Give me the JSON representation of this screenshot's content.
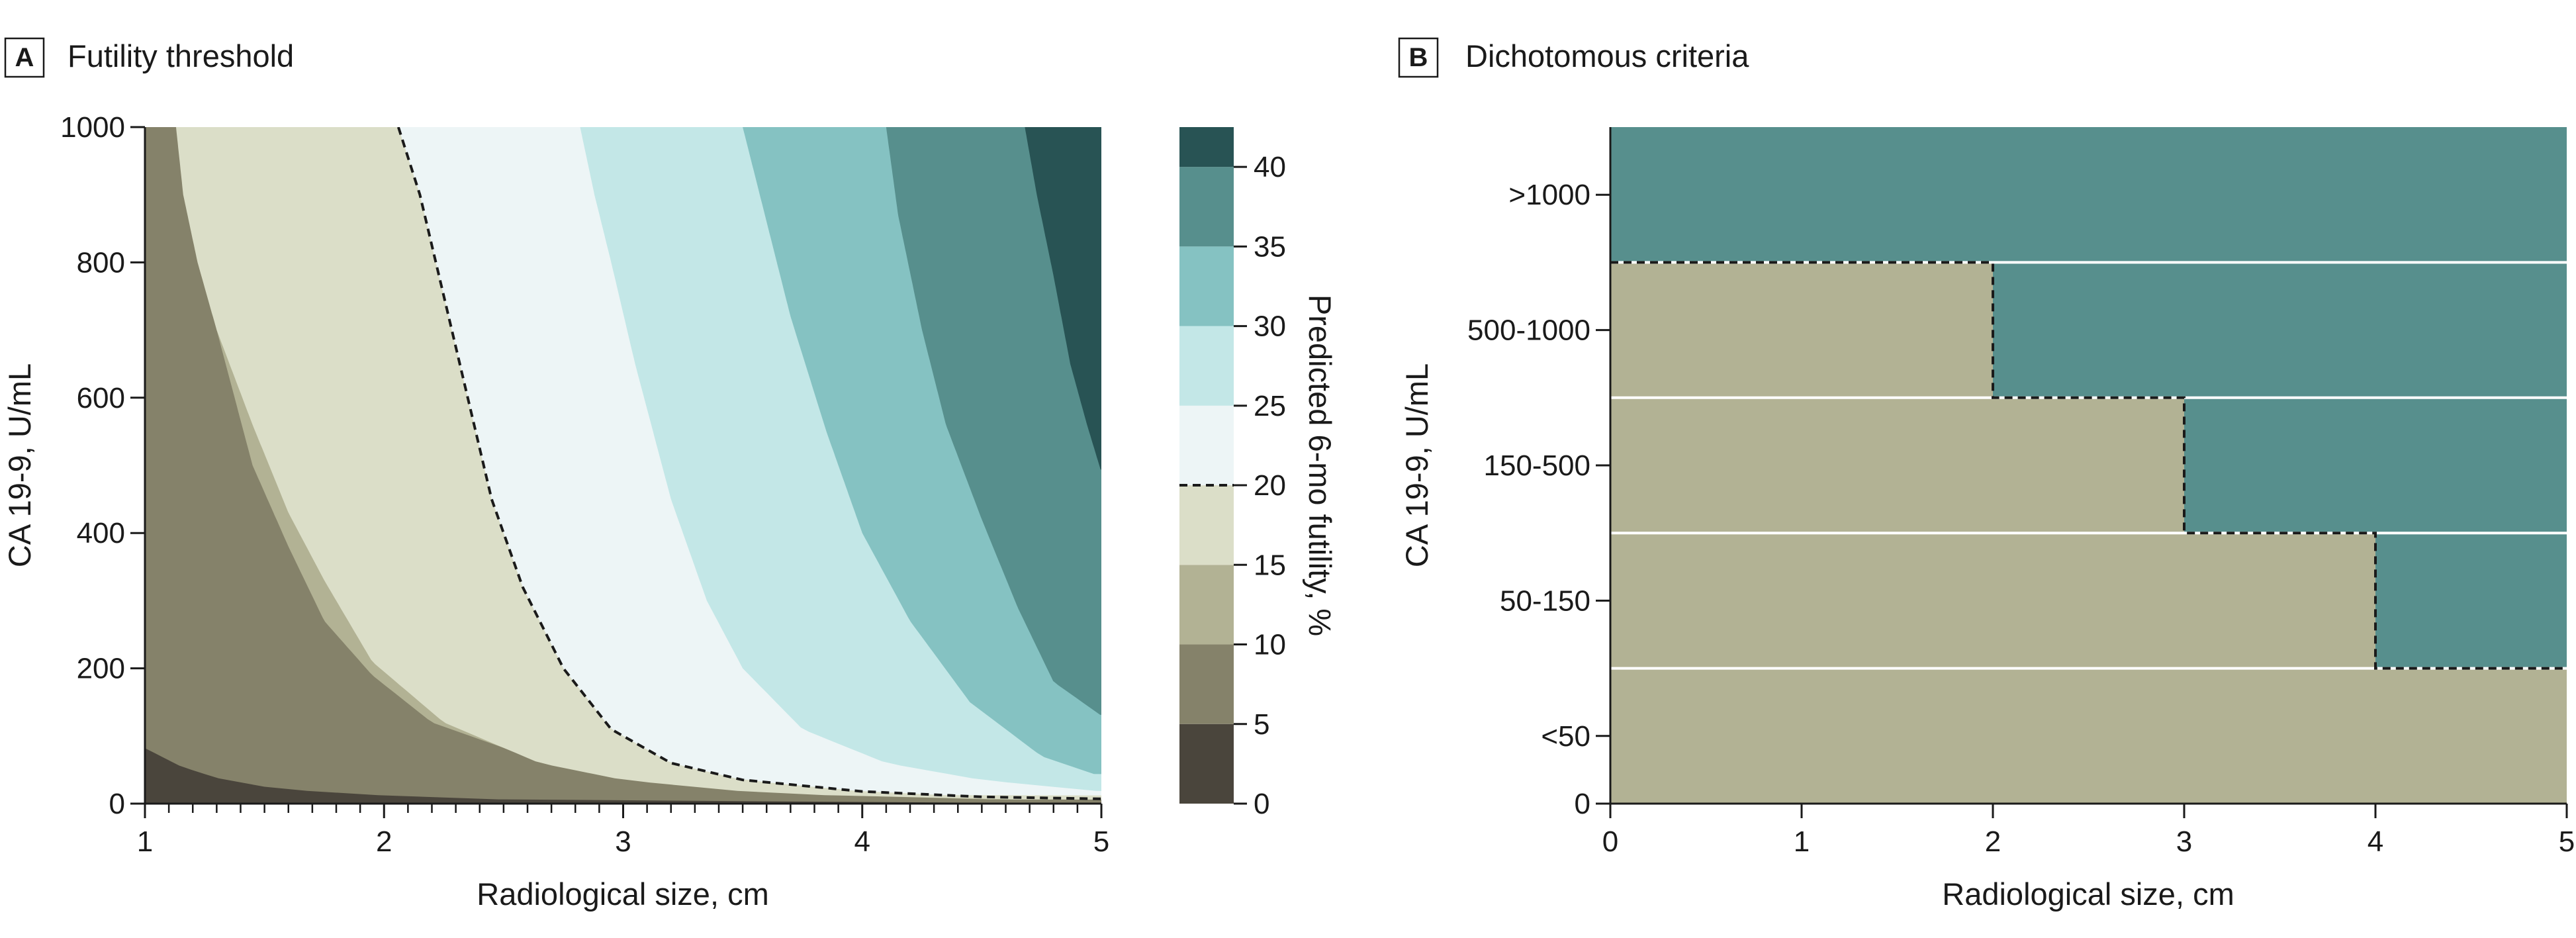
{
  "chart_data": [
    {
      "type": "contour",
      "panel_letter": "A",
      "title": "Futility threshold",
      "xlabel": "Radiological size, cm",
      "ylabel": "CA 19-9, U/mL",
      "xlim": [
        1,
        5
      ],
      "ylim": [
        0,
        1000
      ],
      "x_ticks": [
        1,
        2,
        3,
        4,
        5
      ],
      "y_ticks": [
        0,
        200,
        400,
        600,
        800,
        1000
      ],
      "x_tick_labels": [
        "1",
        "2",
        "3",
        "4",
        "5"
      ],
      "y_tick_labels": [
        "0",
        "200",
        "400",
        "600",
        "800",
        "1000"
      ],
      "x_minor_step": 0.1,
      "colorbar": {
        "label": "Predicted 6-mo futility, %",
        "levels": [
          0,
          5,
          10,
          15,
          20,
          25,
          30,
          35,
          40,
          42.5
        ],
        "tick_values": [
          0,
          5,
          10,
          15,
          20,
          25,
          30,
          35,
          40
        ],
        "tick_labels": [
          "0",
          "5",
          "10",
          "15",
          "20",
          "25",
          "30",
          "35",
          "40"
        ],
        "colors": [
          "#4a453c",
          "#85826a",
          "#b2b294",
          "#dbdec8",
          "#edf5f6",
          "#c3e7e7",
          "#85c2c2",
          "#578f8d",
          "#285354"
        ],
        "threshold": 20
      },
      "contours": [
        {
          "level": 5,
          "points": [
            [
              1.0,
              82
            ],
            [
              1.15,
              55
            ],
            [
              1.3,
              38
            ],
            [
              1.5,
              25
            ],
            [
              1.7,
              18
            ],
            [
              2.0,
              12
            ],
            [
              2.5,
              6
            ],
            [
              3.0,
              3
            ],
            [
              4.0,
              1
            ],
            [
              5.0,
              0
            ]
          ]
        },
        {
          "level": 10,
          "points": [
            [
              1.15,
              1000
            ],
            [
              1.2,
              900
            ],
            [
              1.3,
              700
            ],
            [
              1.45,
              500
            ],
            [
              1.6,
              380
            ],
            [
              1.75,
              270
            ],
            [
              1.95,
              190
            ],
            [
              2.2,
              120
            ],
            [
              2.6,
              70
            ],
            [
              3.0,
              40
            ],
            [
              3.5,
              20
            ],
            [
              4.0,
              10
            ],
            [
              5.0,
              3
            ]
          ]
        },
        {
          "level": 15,
          "points": [
            [
              1.13,
              1000
            ],
            [
              1.16,
              900
            ],
            [
              1.22,
              800
            ],
            [
              1.3,
              700
            ],
            [
              1.45,
              560
            ],
            [
              1.6,
              430
            ],
            [
              1.75,
              330
            ],
            [
              1.95,
              210
            ],
            [
              2.25,
              120
            ],
            [
              2.65,
              60
            ],
            [
              3.0,
              35
            ],
            [
              3.5,
              18
            ],
            [
              4.0,
              10
            ],
            [
              5.0,
              4
            ]
          ]
        },
        {
          "level": 20,
          "points": [
            [
              2.06,
              1000
            ],
            [
              2.15,
              900
            ],
            [
              2.25,
              750
            ],
            [
              2.35,
              600
            ],
            [
              2.45,
              450
            ],
            [
              2.58,
              320
            ],
            [
              2.75,
              200
            ],
            [
              2.95,
              110
            ],
            [
              3.2,
              60
            ],
            [
              3.5,
              35
            ],
            [
              4.0,
              18
            ],
            [
              4.5,
              10
            ],
            [
              5.0,
              7
            ]
          ]
        },
        {
          "level": 25,
          "points": [
            [
              2.82,
              1000
            ],
            [
              2.88,
              900
            ],
            [
              2.95,
              800
            ],
            [
              3.05,
              650
            ],
            [
              3.2,
              450
            ],
            [
              3.35,
              300
            ],
            [
              3.5,
              200
            ],
            [
              3.75,
              110
            ],
            [
              4.1,
              60
            ],
            [
              4.5,
              35
            ],
            [
              5.0,
              18
            ]
          ]
        },
        {
          "level": 30,
          "points": [
            [
              3.5,
              1000
            ],
            [
              3.6,
              860
            ],
            [
              3.7,
              720
            ],
            [
              3.85,
              550
            ],
            [
              4.0,
              400
            ],
            [
              4.2,
              270
            ],
            [
              4.45,
              150
            ],
            [
              4.75,
              70
            ],
            [
              5.0,
              40
            ]
          ]
        },
        {
          "level": 35,
          "points": [
            [
              4.1,
              1000
            ],
            [
              4.15,
              870
            ],
            [
              4.25,
              700
            ],
            [
              4.35,
              560
            ],
            [
              4.5,
              420
            ],
            [
              4.65,
              290
            ],
            [
              4.8,
              180
            ],
            [
              5.0,
              130
            ]
          ]
        },
        {
          "level": 40,
          "points": [
            [
              4.68,
              1000
            ],
            [
              4.73,
              900
            ],
            [
              4.8,
              780
            ],
            [
              4.87,
              650
            ],
            [
              4.94,
              560
            ],
            [
              5.0,
              490
            ]
          ]
        }
      ]
    },
    {
      "type": "heatmap",
      "panel_letter": "B",
      "title": "Dichotomous criteria",
      "xlabel": "Radiological size, cm",
      "ylabel": "CA 19-9, U/mL",
      "xlim": [
        0,
        5
      ],
      "x_ticks": [
        0,
        1,
        2,
        3,
        4,
        5
      ],
      "x_tick_labels": [
        "0",
        "1",
        "2",
        "3",
        "4",
        "5"
      ],
      "categories": [
        ">1000",
        "500-1000",
        "150-500",
        "50-150",
        "<50"
      ],
      "y_origin_label": "0",
      "colors": {
        "futile": "#578f8d",
        "not_futile": "#b2b294"
      },
      "threshold_cm_by_category": [
        0,
        2,
        3,
        4,
        null
      ]
    }
  ]
}
